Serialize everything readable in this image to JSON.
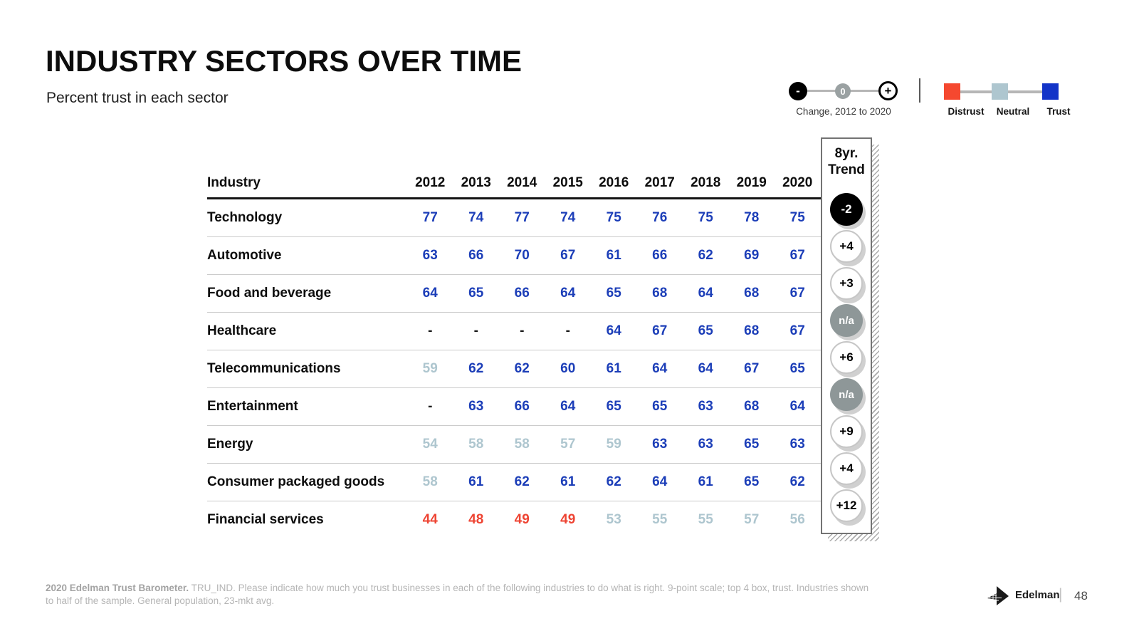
{
  "header": {
    "title": "INDUSTRY SECTORS OVER TIME",
    "subtitle": "Percent trust in each sector"
  },
  "legend": {
    "change": {
      "minus": "-",
      "zero": "0",
      "plus": "+",
      "caption": "Change, 2012 to 2020"
    },
    "scale": {
      "items": [
        {
          "label": "Distrust",
          "color": "#f5482f"
        },
        {
          "label": "Neutral",
          "color": "#aec6cf"
        },
        {
          "label": "Trust",
          "color": "#1334c8"
        }
      ]
    }
  },
  "chart_data": {
    "type": "table",
    "title": "INDUSTRY SECTORS OVER TIME",
    "subtitle": "Percent trust in each sector",
    "industry_header": "Industry",
    "years": [
      "2012",
      "2013",
      "2014",
      "2015",
      "2016",
      "2017",
      "2018",
      "2019",
      "2020"
    ],
    "trend_header": {
      "line1": "8yr.",
      "line2": "Trend"
    },
    "sentiment_colors": {
      "T": "#1c3eb8",
      "N": "#aec6cf",
      "D": "#ee4433",
      "X": "#1a1a1a"
    },
    "sentiment_meaning": {
      "T": "trust",
      "N": "neutral",
      "D": "distrust",
      "X": "no data"
    },
    "rows": [
      {
        "industry": "Technology",
        "values": [
          "77",
          "74",
          "77",
          "74",
          "75",
          "76",
          "75",
          "78",
          "75"
        ],
        "sentiments": "TTTTTTTTT",
        "trend": "-2",
        "trend_style": "negative"
      },
      {
        "industry": "Automotive",
        "values": [
          "63",
          "66",
          "70",
          "67",
          "61",
          "66",
          "62",
          "69",
          "67"
        ],
        "sentiments": "TTTTTTTTT",
        "trend": "+4",
        "trend_style": "positive"
      },
      {
        "industry": "Food and beverage",
        "values": [
          "64",
          "65",
          "66",
          "64",
          "65",
          "68",
          "64",
          "68",
          "67"
        ],
        "sentiments": "TTTTTTTTT",
        "trend": "+3",
        "trend_style": "positive"
      },
      {
        "industry": "Healthcare",
        "values": [
          "-",
          "-",
          "-",
          "-",
          "64",
          "67",
          "65",
          "68",
          "67"
        ],
        "sentiments": "XXXXTTTTT",
        "trend": "n/a",
        "trend_style": "na"
      },
      {
        "industry": "Telecommunications",
        "values": [
          "59",
          "62",
          "62",
          "60",
          "61",
          "64",
          "64",
          "67",
          "65"
        ],
        "sentiments": "NTTTTTTTT",
        "trend": "+6",
        "trend_style": "positive"
      },
      {
        "industry": "Entertainment",
        "values": [
          "-",
          "63",
          "66",
          "64",
          "65",
          "65",
          "63",
          "68",
          "64"
        ],
        "sentiments": "XTTTTTTTT",
        "trend": "n/a",
        "trend_style": "na"
      },
      {
        "industry": "Energy",
        "values": [
          "54",
          "58",
          "58",
          "57",
          "59",
          "63",
          "63",
          "65",
          "63"
        ],
        "sentiments": "NNNNNTTTT",
        "trend": "+9",
        "trend_style": "positive"
      },
      {
        "industry": "Consumer packaged goods",
        "values": [
          "58",
          "61",
          "62",
          "61",
          "62",
          "64",
          "61",
          "65",
          "62"
        ],
        "sentiments": "NTTTTTTTT",
        "trend": "+4",
        "trend_style": "positive"
      },
      {
        "industry": "Financial services",
        "values": [
          "44",
          "48",
          "49",
          "49",
          "53",
          "55",
          "55",
          "57",
          "56"
        ],
        "sentiments": "DDDDNNNNN",
        "trend": "+12",
        "trend_style": "positive"
      }
    ]
  },
  "footer": {
    "source_bold": "2020 Edelman Trust Barometer.",
    "note_line1": "TRU_IND. Please indicate how much you trust businesses in each of the following industries to do what is right. 9-point scale; top 4 box, trust. Industries shown",
    "note_line2": "to half of the sample. General population, 23-mkt avg.",
    "brand": "Edelman",
    "page_divider": "|",
    "page_number": "48"
  }
}
